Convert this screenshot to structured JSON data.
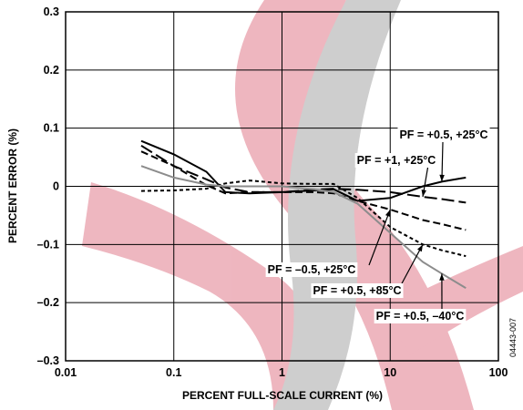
{
  "chart_data": {
    "type": "line",
    "x_label": "PERCENT FULL-SCALE CURRENT (%)",
    "y_label": "PERCENT ERROR (%)",
    "figure_id": "04443-007",
    "xscale": "log",
    "grid": true,
    "xlim": [
      0.01,
      100
    ],
    "xticks": [
      0.01,
      0.1,
      1,
      10,
      100
    ],
    "ylim": [
      -0.3,
      0.3
    ],
    "yticks": [
      {
        "value": -0.3,
        "label": "–0.3"
      },
      {
        "value": -0.2,
        "label": "–0.2"
      },
      {
        "value": -0.1,
        "label": "–0.1"
      },
      0,
      0.1,
      0.2,
      0.3
    ],
    "x": [
      0.05,
      0.1,
      0.2,
      0.3,
      0.5,
      1,
      2,
      3,
      5,
      10,
      20,
      30,
      50
    ],
    "series": [
      {
        "name": "PF = +0.5, +25°C",
        "color": "#000000",
        "line_style": "solid",
        "values": [
          0.078,
          0.055,
          0.025,
          -0.01,
          -0.012,
          -0.01,
          -0.007,
          -0.005,
          -0.025,
          -0.02,
          0.0,
          0.008,
          0.015
        ]
      },
      {
        "name": "PF = +1, +25°C",
        "color": "#000000",
        "line_style": "long-dash",
        "values": [
          0.07,
          0.035,
          0.012,
          -0.002,
          -0.01,
          -0.01,
          -0.006,
          -0.004,
          -0.006,
          -0.01,
          -0.018,
          -0.022,
          -0.028
        ]
      },
      {
        "name": "PF = –0.5, +25°C",
        "color": "#000000",
        "line_style": "dash",
        "values": [
          0.06,
          0.035,
          0.002,
          -0.012,
          -0.01,
          -0.01,
          -0.01,
          -0.012,
          -0.025,
          -0.04,
          -0.058,
          -0.065,
          -0.075
        ]
      },
      {
        "name": "PF = +0.5, +85°C",
        "color": "#000000",
        "line_style": "short-dash",
        "values": [
          -0.008,
          -0.007,
          -0.004,
          0.005,
          0.01,
          0.005,
          0.004,
          0.004,
          -0.02,
          -0.07,
          -0.1,
          -0.11,
          -0.12
        ]
      },
      {
        "name": "PF = +0.5, –40°C",
        "color": "#8c8c8c",
        "line_style": "solid",
        "values": [
          0.035,
          0.015,
          0.003,
          0.0,
          0.0,
          0.0,
          -0.005,
          -0.01,
          -0.03,
          -0.08,
          -0.13,
          -0.15,
          -0.175
        ]
      }
    ]
  }
}
